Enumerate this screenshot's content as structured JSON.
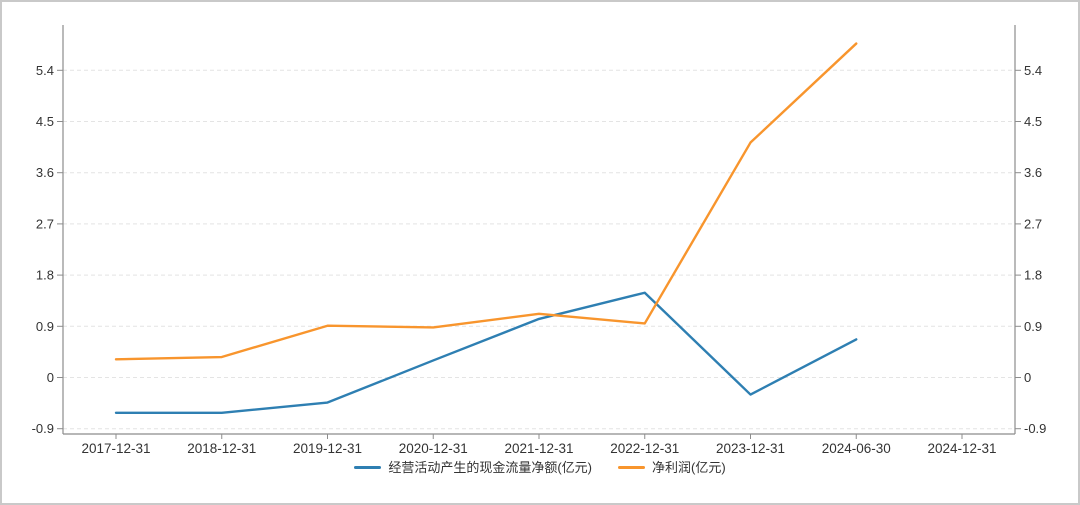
{
  "chart_data": {
    "type": "line",
    "title": "",
    "categories": [
      "2017-12-31",
      "2018-12-31",
      "2019-12-31",
      "2020-12-31",
      "2021-12-31",
      "2022-12-31",
      "2023-12-31",
      "2024-06-30",
      "2024-12-31"
    ],
    "series": [
      {
        "name": "经营活动产生的现金流量净额(亿元)",
        "color": "#2e7fb2",
        "values": [
          -0.62,
          -0.62,
          -0.44,
          0.3,
          1.03,
          1.49,
          -0.3,
          0.67,
          null
        ]
      },
      {
        "name": "净利润(亿元)",
        "color": "#f8952d",
        "values": [
          0.32,
          0.36,
          0.91,
          0.88,
          1.12,
          0.95,
          4.13,
          5.87,
          null
        ]
      }
    ],
    "y_ticks": [
      {
        "value": -0.9,
        "label": "-0.9"
      },
      {
        "value": 0,
        "label": "0"
      },
      {
        "value": 0.9,
        "label": "0.9"
      },
      {
        "value": 1.8,
        "label": "1.8"
      },
      {
        "value": 2.7,
        "label": "2.7"
      },
      {
        "value": 3.6,
        "label": "3.6"
      },
      {
        "value": 4.5,
        "label": "4.5"
      },
      {
        "value": 5.4,
        "label": "5.4"
      }
    ],
    "ylim": [
      -1.0,
      6.2
    ],
    "xlabel": "",
    "ylabel": "",
    "dual_y_axis": true,
    "grid": "horizontal-dashed",
    "legend_position": "bottom-center"
  },
  "style": {
    "axis_color": "#8c8c8c",
    "grid_color": "#e4e4e4",
    "tick_label_color": "#333333",
    "background": "#ffffff",
    "border_color": "#c9c9c9"
  }
}
